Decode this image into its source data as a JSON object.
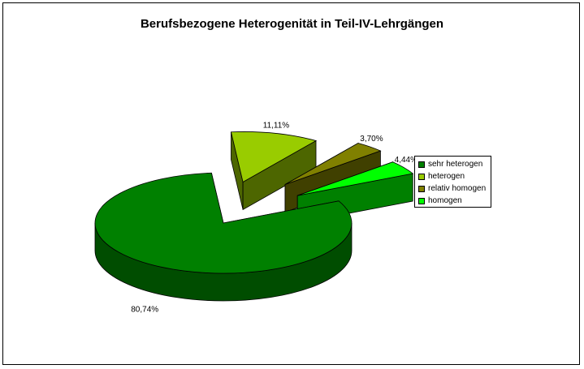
{
  "chart_data": {
    "type": "pie",
    "title": "Berufsbezogene Heterogenität in Teil-IV-Lehrgängen",
    "three_d": true,
    "exploded": true,
    "legend_position": "right",
    "slices": [
      {
        "name": "sehr heterogen",
        "value": 80.74,
        "label": "80,74%",
        "color": "#008000",
        "side_color": "#004d00"
      },
      {
        "name": "heterogen",
        "value": 11.11,
        "label": "11,11%",
        "color": "#99cc00",
        "side_color": "#4d6600"
      },
      {
        "name": "relativ homogen",
        "value": 3.7,
        "label": "3,70%",
        "color": "#808000",
        "side_color": "#404000"
      },
      {
        "name": "homogen",
        "value": 4.44,
        "label": "4,44%",
        "color": "#00ff00",
        "side_color": "#008000"
      }
    ]
  }
}
